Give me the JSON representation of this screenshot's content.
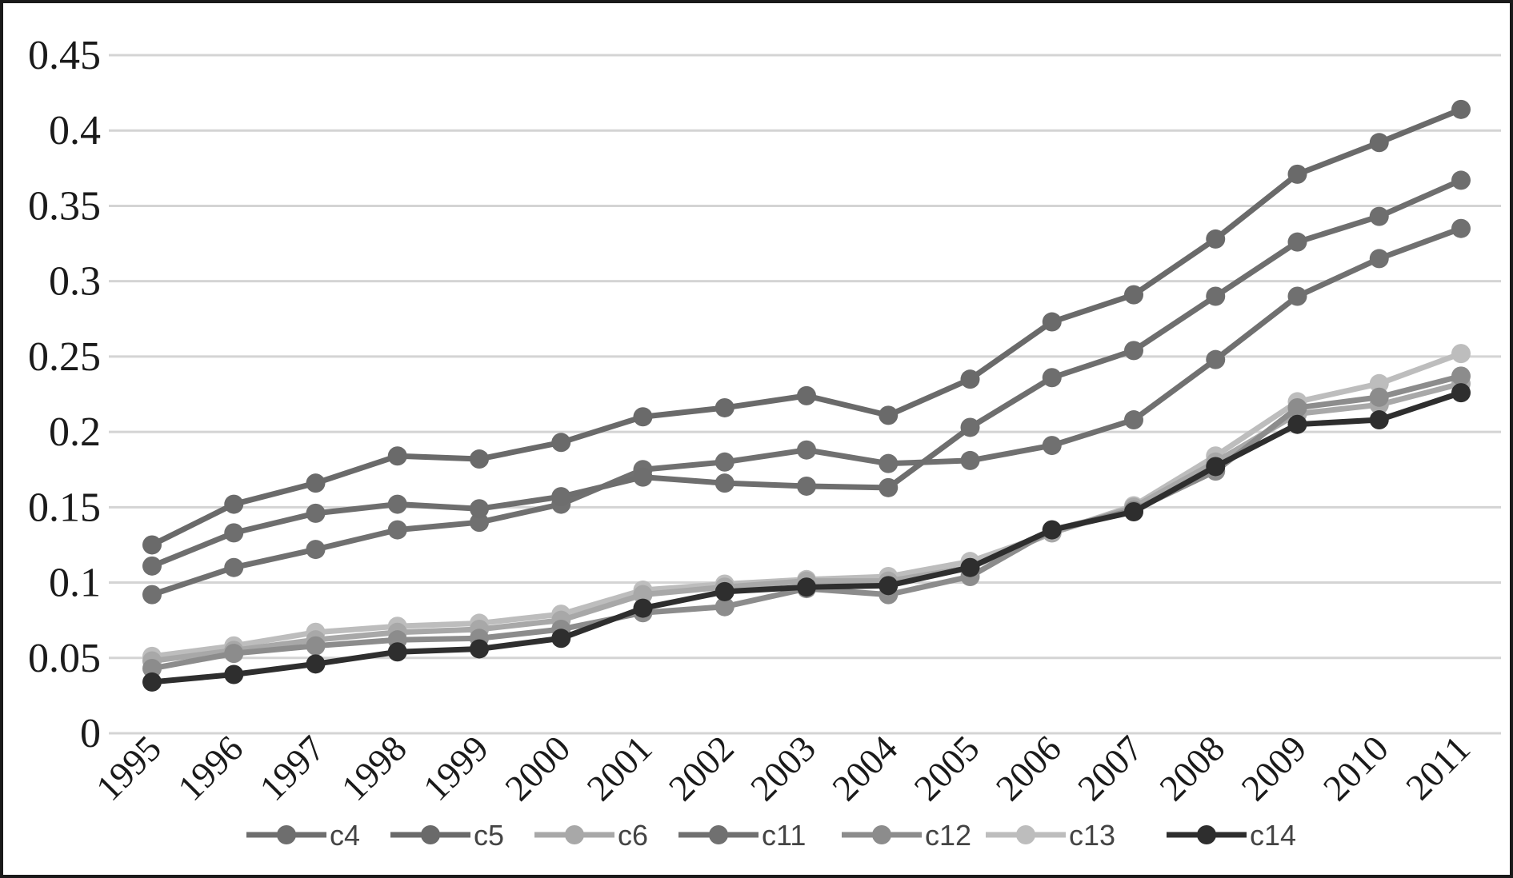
{
  "chart_data": {
    "type": "line",
    "title": "",
    "xlabel": "",
    "ylabel": "",
    "ylim": [
      0,
      0.45
    ],
    "yticks": [
      0,
      0.05,
      0.1,
      0.15,
      0.2,
      0.25,
      0.3,
      0.35,
      0.4,
      0.45
    ],
    "ytick_labels": [
      "0",
      "0.05",
      "0.1",
      "0.15",
      "0.2",
      "0.25",
      "0.3",
      "0.35",
      "0.4",
      "0.45"
    ],
    "grid": "horizontal",
    "legend_position": "bottom",
    "categories": [
      "1995",
      "1996",
      "1997",
      "1998",
      "1999",
      "2000",
      "2001",
      "2002",
      "2003",
      "2004",
      "2005",
      "2006",
      "2007",
      "2008",
      "2009",
      "2010",
      "2011"
    ],
    "series": [
      {
        "name": "c4",
        "color": "#6e6e6e",
        "values": [
          0.111,
          0.133,
          0.146,
          0.152,
          0.149,
          0.157,
          0.17,
          0.166,
          0.164,
          0.163,
          0.203,
          0.236,
          0.254,
          0.29,
          0.326,
          0.343,
          0.367
        ]
      },
      {
        "name": "c5",
        "color": "#6a6a6a",
        "values": [
          0.125,
          0.152,
          0.166,
          0.184,
          0.182,
          0.193,
          0.21,
          0.216,
          0.224,
          0.211,
          0.235,
          0.273,
          0.291,
          0.328,
          0.371,
          0.392,
          0.414
        ]
      },
      {
        "name": "c6",
        "color": "#a8a8a8",
        "values": [
          0.048,
          0.055,
          0.062,
          0.067,
          0.069,
          0.075,
          0.092,
          0.097,
          0.101,
          0.101,
          0.11,
          0.133,
          0.15,
          0.18,
          0.212,
          0.218,
          0.232
        ]
      },
      {
        "name": "c11",
        "color": "#707070",
        "values": [
          0.092,
          0.11,
          0.122,
          0.135,
          0.14,
          0.152,
          0.175,
          0.18,
          0.188,
          0.179,
          0.181,
          0.191,
          0.208,
          0.248,
          0.29,
          0.315,
          0.335
        ]
      },
      {
        "name": "c12",
        "color": "#8c8c8c",
        "values": [
          0.043,
          0.053,
          0.058,
          0.062,
          0.063,
          0.069,
          0.08,
          0.084,
          0.096,
          0.092,
          0.104,
          0.135,
          0.148,
          0.174,
          0.216,
          0.223,
          0.237
        ]
      },
      {
        "name": "c13",
        "color": "#bdbdbd",
        "values": [
          0.051,
          0.058,
          0.067,
          0.071,
          0.073,
          0.079,
          0.095,
          0.099,
          0.102,
          0.104,
          0.114,
          0.133,
          0.151,
          0.184,
          0.22,
          0.232,
          0.252
        ]
      },
      {
        "name": "c14",
        "color": "#2e2e2e",
        "values": [
          0.034,
          0.039,
          0.046,
          0.054,
          0.056,
          0.063,
          0.083,
          0.094,
          0.097,
          0.098,
          0.11,
          0.135,
          0.147,
          0.177,
          0.205,
          0.208,
          0.226
        ]
      }
    ]
  }
}
